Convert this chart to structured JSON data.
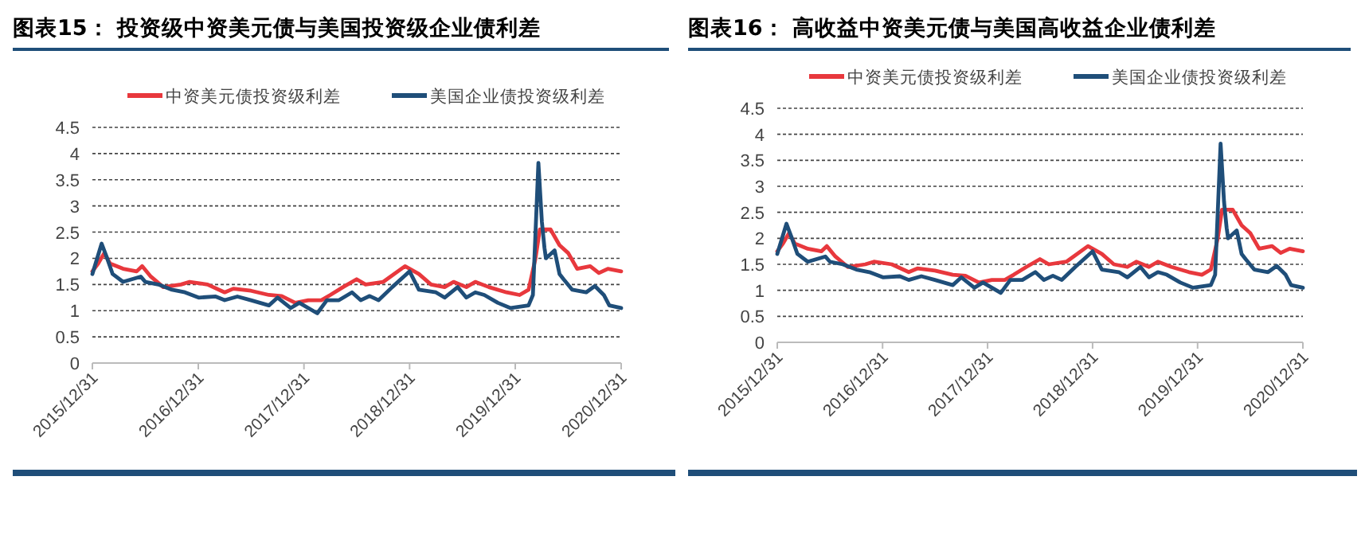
{
  "chart_data": [
    {
      "type": "line",
      "title": "图表15： 投资级中资美元债与美国投资级企业债利差",
      "legend": "top",
      "grid": "y",
      "marker": "none",
      "line_style": "solid",
      "xlim": [
        "2015-12-31",
        "2020-12-31"
      ],
      "xticks": [
        {
          "value": "2015-12-31",
          "label": "2015/12/31"
        },
        {
          "value": "2016-12-31",
          "label": "2016/12/31"
        },
        {
          "value": "2017-12-31",
          "label": "2017/12/31"
        },
        {
          "value": "2018-12-31",
          "label": "2018/12/31"
        },
        {
          "value": "2019-12-31",
          "label": "2019/12/31"
        },
        {
          "value": "2020-12-31",
          "label": "2020/12/31"
        }
      ],
      "ylim": [
        0,
        4.5
      ],
      "yticks": [
        0,
        0.5,
        1,
        1.5,
        2,
        2.5,
        3,
        3.5,
        4,
        4.5
      ],
      "series": [
        {
          "name": "中资美元债投资级利差",
          "color": "#e8383d",
          "x": [
            "2015-12-31",
            "2016-01-20",
            "2016-02-10",
            "2016-03-01",
            "2016-04-15",
            "2016-06-01",
            "2016-06-20",
            "2016-07-20",
            "2016-09-01",
            "2016-11-01",
            "2016-12-01",
            "2017-02-01",
            "2017-04-01",
            "2017-05-01",
            "2017-07-01",
            "2017-09-01",
            "2017-10-15",
            "2017-12-01",
            "2018-01-15",
            "2018-03-01",
            "2018-04-01",
            "2018-05-15",
            "2018-07-01",
            "2018-08-01",
            "2018-10-01",
            "2018-12-15",
            "2019-02-01",
            "2019-03-15",
            "2019-05-01",
            "2019-06-01",
            "2019-07-15",
            "2019-08-15",
            "2019-10-01",
            "2019-12-01",
            "2020-01-15",
            "2020-02-15",
            "2020-03-10",
            "2020-03-25",
            "2020-05-01",
            "2020-06-01",
            "2020-07-01",
            "2020-08-01",
            "2020-09-15",
            "2020-10-15",
            "2020-11-15",
            "2020-12-31"
          ],
          "values": [
            1.75,
            1.9,
            2.1,
            1.9,
            1.8,
            1.75,
            1.85,
            1.65,
            1.45,
            1.5,
            1.55,
            1.5,
            1.35,
            1.42,
            1.38,
            1.3,
            1.28,
            1.15,
            1.2,
            1.2,
            1.3,
            1.45,
            1.6,
            1.5,
            1.55,
            1.85,
            1.7,
            1.5,
            1.45,
            1.55,
            1.45,
            1.55,
            1.45,
            1.35,
            1.3,
            1.4,
            2.0,
            2.55,
            2.55,
            2.25,
            2.1,
            1.8,
            1.85,
            1.72,
            1.8,
            1.75
          ]
        },
        {
          "name": "美国企业债投资级利差",
          "color": "#1f4e79",
          "x": [
            "2015-12-31",
            "2016-02-01",
            "2016-02-20",
            "2016-03-10",
            "2016-04-15",
            "2016-06-15",
            "2016-07-01",
            "2016-08-15",
            "2016-10-01",
            "2016-11-15",
            "2017-01-01",
            "2017-03-01",
            "2017-04-01",
            "2017-05-15",
            "2017-07-01",
            "2017-09-01",
            "2017-10-01",
            "2017-11-15",
            "2017-12-15",
            "2018-02-15",
            "2018-03-20",
            "2018-05-01",
            "2018-06-15",
            "2018-07-15",
            "2018-08-15",
            "2018-09-15",
            "2018-11-01",
            "2018-12-31",
            "2019-02-01",
            "2019-04-01",
            "2019-05-01",
            "2019-06-15",
            "2019-07-15",
            "2019-08-15",
            "2019-09-15",
            "2019-11-01",
            "2019-12-15",
            "2020-02-15",
            "2020-03-01",
            "2020-03-20",
            "2020-04-01",
            "2020-04-10",
            "2020-04-15",
            "2020-05-15",
            "2020-06-01",
            "2020-06-15",
            "2020-07-15",
            "2020-09-01",
            "2020-10-01",
            "2020-11-01",
            "2020-11-20",
            "2020-12-31"
          ],
          "values": [
            1.7,
            2.28,
            2.0,
            1.7,
            1.55,
            1.65,
            1.55,
            1.5,
            1.4,
            1.35,
            1.25,
            1.27,
            1.2,
            1.27,
            1.2,
            1.1,
            1.25,
            1.05,
            1.15,
            0.95,
            1.2,
            1.2,
            1.35,
            1.2,
            1.28,
            1.2,
            1.45,
            1.75,
            1.4,
            1.35,
            1.25,
            1.45,
            1.25,
            1.35,
            1.3,
            1.15,
            1.05,
            1.1,
            1.3,
            3.82,
            2.7,
            2.2,
            2.0,
            2.15,
            1.7,
            1.6,
            1.4,
            1.35,
            1.47,
            1.3,
            1.1,
            1.05
          ]
        }
      ]
    },
    {
      "type": "line",
      "title": "图表16： 高收益中资美元债与美国高收益企业债利差",
      "legend": "top",
      "grid": "y",
      "marker": "none",
      "line_style": "solid",
      "xlim": [
        "2015-12-31",
        "2020-12-31"
      ],
      "xticks": [
        {
          "value": "2015-12-31",
          "label": "2015/12/31"
        },
        {
          "value": "2016-12-31",
          "label": "2016/12/31"
        },
        {
          "value": "2017-12-31",
          "label": "2017/12/31"
        },
        {
          "value": "2018-12-31",
          "label": "2018/12/31"
        },
        {
          "value": "2019-12-31",
          "label": "2019/12/31"
        },
        {
          "value": "2020-12-31",
          "label": "2020/12/31"
        }
      ],
      "ylim": [
        0,
        4.5
      ],
      "yticks": [
        0,
        0.5,
        1,
        1.5,
        2,
        2.5,
        3,
        3.5,
        4,
        4.5
      ],
      "series": [
        {
          "name": "中资美元债投资级利差",
          "color": "#e8383d",
          "x": [
            "2015-12-31",
            "2016-01-20",
            "2016-02-10",
            "2016-03-01",
            "2016-04-15",
            "2016-06-01",
            "2016-06-20",
            "2016-07-20",
            "2016-09-01",
            "2016-11-01",
            "2016-12-01",
            "2017-02-01",
            "2017-04-01",
            "2017-05-01",
            "2017-07-01",
            "2017-09-01",
            "2017-10-15",
            "2017-12-01",
            "2018-01-15",
            "2018-03-01",
            "2018-04-01",
            "2018-05-15",
            "2018-07-01",
            "2018-08-01",
            "2018-10-01",
            "2018-12-15",
            "2019-02-01",
            "2019-03-15",
            "2019-05-01",
            "2019-06-01",
            "2019-07-15",
            "2019-08-15",
            "2019-10-01",
            "2019-12-01",
            "2020-01-15",
            "2020-02-15",
            "2020-03-10",
            "2020-03-25",
            "2020-05-01",
            "2020-06-01",
            "2020-07-01",
            "2020-08-01",
            "2020-09-15",
            "2020-10-15",
            "2020-11-15",
            "2020-12-31"
          ],
          "values": [
            1.75,
            1.9,
            2.1,
            1.9,
            1.8,
            1.75,
            1.85,
            1.65,
            1.45,
            1.5,
            1.55,
            1.5,
            1.35,
            1.42,
            1.38,
            1.3,
            1.28,
            1.15,
            1.2,
            1.2,
            1.3,
            1.45,
            1.6,
            1.5,
            1.55,
            1.85,
            1.7,
            1.5,
            1.45,
            1.55,
            1.45,
            1.55,
            1.45,
            1.35,
            1.3,
            1.4,
            2.0,
            2.55,
            2.55,
            2.25,
            2.1,
            1.8,
            1.85,
            1.72,
            1.8,
            1.75
          ]
        },
        {
          "name": "美国企业债投资级利差",
          "color": "#1f4e79",
          "x": [
            "2015-12-31",
            "2016-02-01",
            "2016-02-20",
            "2016-03-10",
            "2016-04-15",
            "2016-06-15",
            "2016-07-01",
            "2016-08-15",
            "2016-10-01",
            "2016-11-15",
            "2017-01-01",
            "2017-03-01",
            "2017-04-01",
            "2017-05-15",
            "2017-07-01",
            "2017-09-01",
            "2017-10-01",
            "2017-11-15",
            "2017-12-15",
            "2018-02-15",
            "2018-03-20",
            "2018-05-01",
            "2018-06-15",
            "2018-07-15",
            "2018-08-15",
            "2018-09-15",
            "2018-11-01",
            "2018-12-31",
            "2019-02-01",
            "2019-04-01",
            "2019-05-01",
            "2019-06-15",
            "2019-07-15",
            "2019-08-15",
            "2019-09-15",
            "2019-11-01",
            "2019-12-15",
            "2020-02-15",
            "2020-03-01",
            "2020-03-20",
            "2020-04-01",
            "2020-04-10",
            "2020-04-15",
            "2020-05-15",
            "2020-06-01",
            "2020-06-15",
            "2020-07-15",
            "2020-09-01",
            "2020-10-01",
            "2020-11-01",
            "2020-11-20",
            "2020-12-31"
          ],
          "values": [
            1.7,
            2.28,
            2.0,
            1.7,
            1.55,
            1.65,
            1.55,
            1.5,
            1.4,
            1.35,
            1.25,
            1.27,
            1.2,
            1.27,
            1.2,
            1.1,
            1.25,
            1.05,
            1.15,
            0.95,
            1.2,
            1.2,
            1.35,
            1.2,
            1.28,
            1.2,
            1.45,
            1.75,
            1.4,
            1.35,
            1.25,
            1.45,
            1.25,
            1.35,
            1.3,
            1.15,
            1.05,
            1.1,
            1.3,
            3.82,
            2.7,
            2.2,
            2.0,
            2.15,
            1.7,
            1.6,
            1.4,
            1.35,
            1.47,
            1.3,
            1.1,
            1.05
          ]
        }
      ]
    }
  ]
}
